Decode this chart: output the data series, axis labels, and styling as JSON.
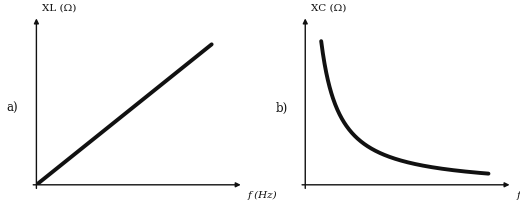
{
  "background_color": "#ffffff",
  "left_ylabel": "XL (Ω)",
  "left_xlabel": "f (Hz)",
  "left_label": "a)",
  "right_ylabel": "XC (Ω)",
  "right_xlabel": "f (Hz)",
  "right_label": "b)",
  "line_color": "#111111",
  "line_width": 2.8,
  "axis_color": "#111111",
  "axis_lw": 1.0,
  "label_fontsize": 7.5,
  "side_label_fontsize": 8.5,
  "fig_width": 5.2,
  "fig_height": 2.1,
  "dpi": 100
}
